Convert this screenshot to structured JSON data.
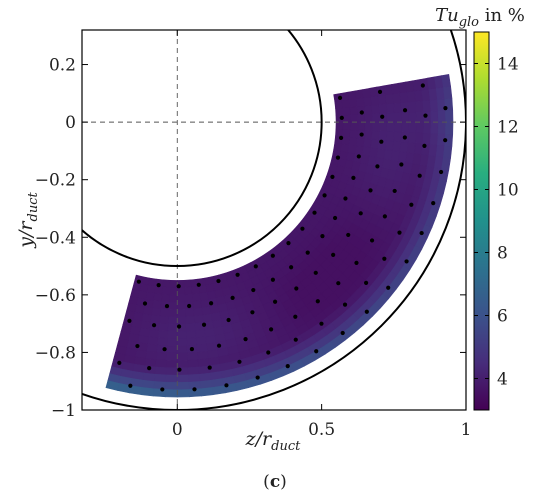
{
  "chart_data": {
    "type": "heatmap",
    "title": "",
    "xlabel_main": "z/r",
    "xlabel_sub": "duct",
    "ylabel_main": "y/r",
    "ylabel_sub": "duct",
    "xlim": [
      -0.33,
      1.0
    ],
    "ylim": [
      -1.0,
      0.32
    ],
    "x_ticks": [
      {
        "value": 0,
        "label": "0"
      },
      {
        "value": 0.5,
        "label": "0.5"
      },
      {
        "value": 1,
        "label": "1"
      }
    ],
    "y_ticks": [
      {
        "value": 0.2,
        "label": "0.2"
      },
      {
        "value": 0,
        "label": "0"
      },
      {
        "value": -0.2,
        "label": "-0.2"
      },
      {
        "value": -0.4,
        "label": "-0.4"
      },
      {
        "value": -0.6,
        "label": "-0.6"
      },
      {
        "value": -0.8,
        "label": "-0.8"
      },
      {
        "value": -1,
        "label": "-1"
      }
    ],
    "grid": false,
    "crosshair_lines": [
      {
        "axis": "x",
        "value": 0
      },
      {
        "axis": "y",
        "value": 0
      }
    ],
    "reference_circles": [
      {
        "center": [
          0,
          0
        ],
        "radius": 0.5
      },
      {
        "center": [
          0,
          0
        ],
        "radius": 1.0
      }
    ],
    "measurement_region": {
      "center": [
        0,
        0
      ],
      "r_inner": 0.55,
      "r_outer": 0.955,
      "angle_start_deg": -105,
      "angle_end_deg": 10
    },
    "measurement_rings": [
      0.57,
      0.64,
      0.71,
      0.79,
      0.86,
      0.93
    ],
    "measurement_angle_count": 17,
    "colorbar": {
      "title_main": "Tu",
      "title_sub": "glo",
      "title_suffix": " in %",
      "min": 3,
      "max": 15,
      "ticks": [
        {
          "value": 4,
          "label": "4"
        },
        {
          "value": 6,
          "label": "6"
        },
        {
          "value": 8,
          "label": "8"
        },
        {
          "value": 10,
          "label": "10"
        },
        {
          "value": 12,
          "label": "12"
        },
        {
          "value": 14,
          "label": "14"
        }
      ],
      "colormap": [
        "#440154",
        "#472d7b",
        "#3b528b",
        "#2c728e",
        "#21918c",
        "#28ae80",
        "#5ec962",
        "#addc30",
        "#fde725"
      ]
    },
    "field_value_range": [
      3.5,
      7.0
    ],
    "caption": "(c)",
    "caption_bold": "c"
  }
}
